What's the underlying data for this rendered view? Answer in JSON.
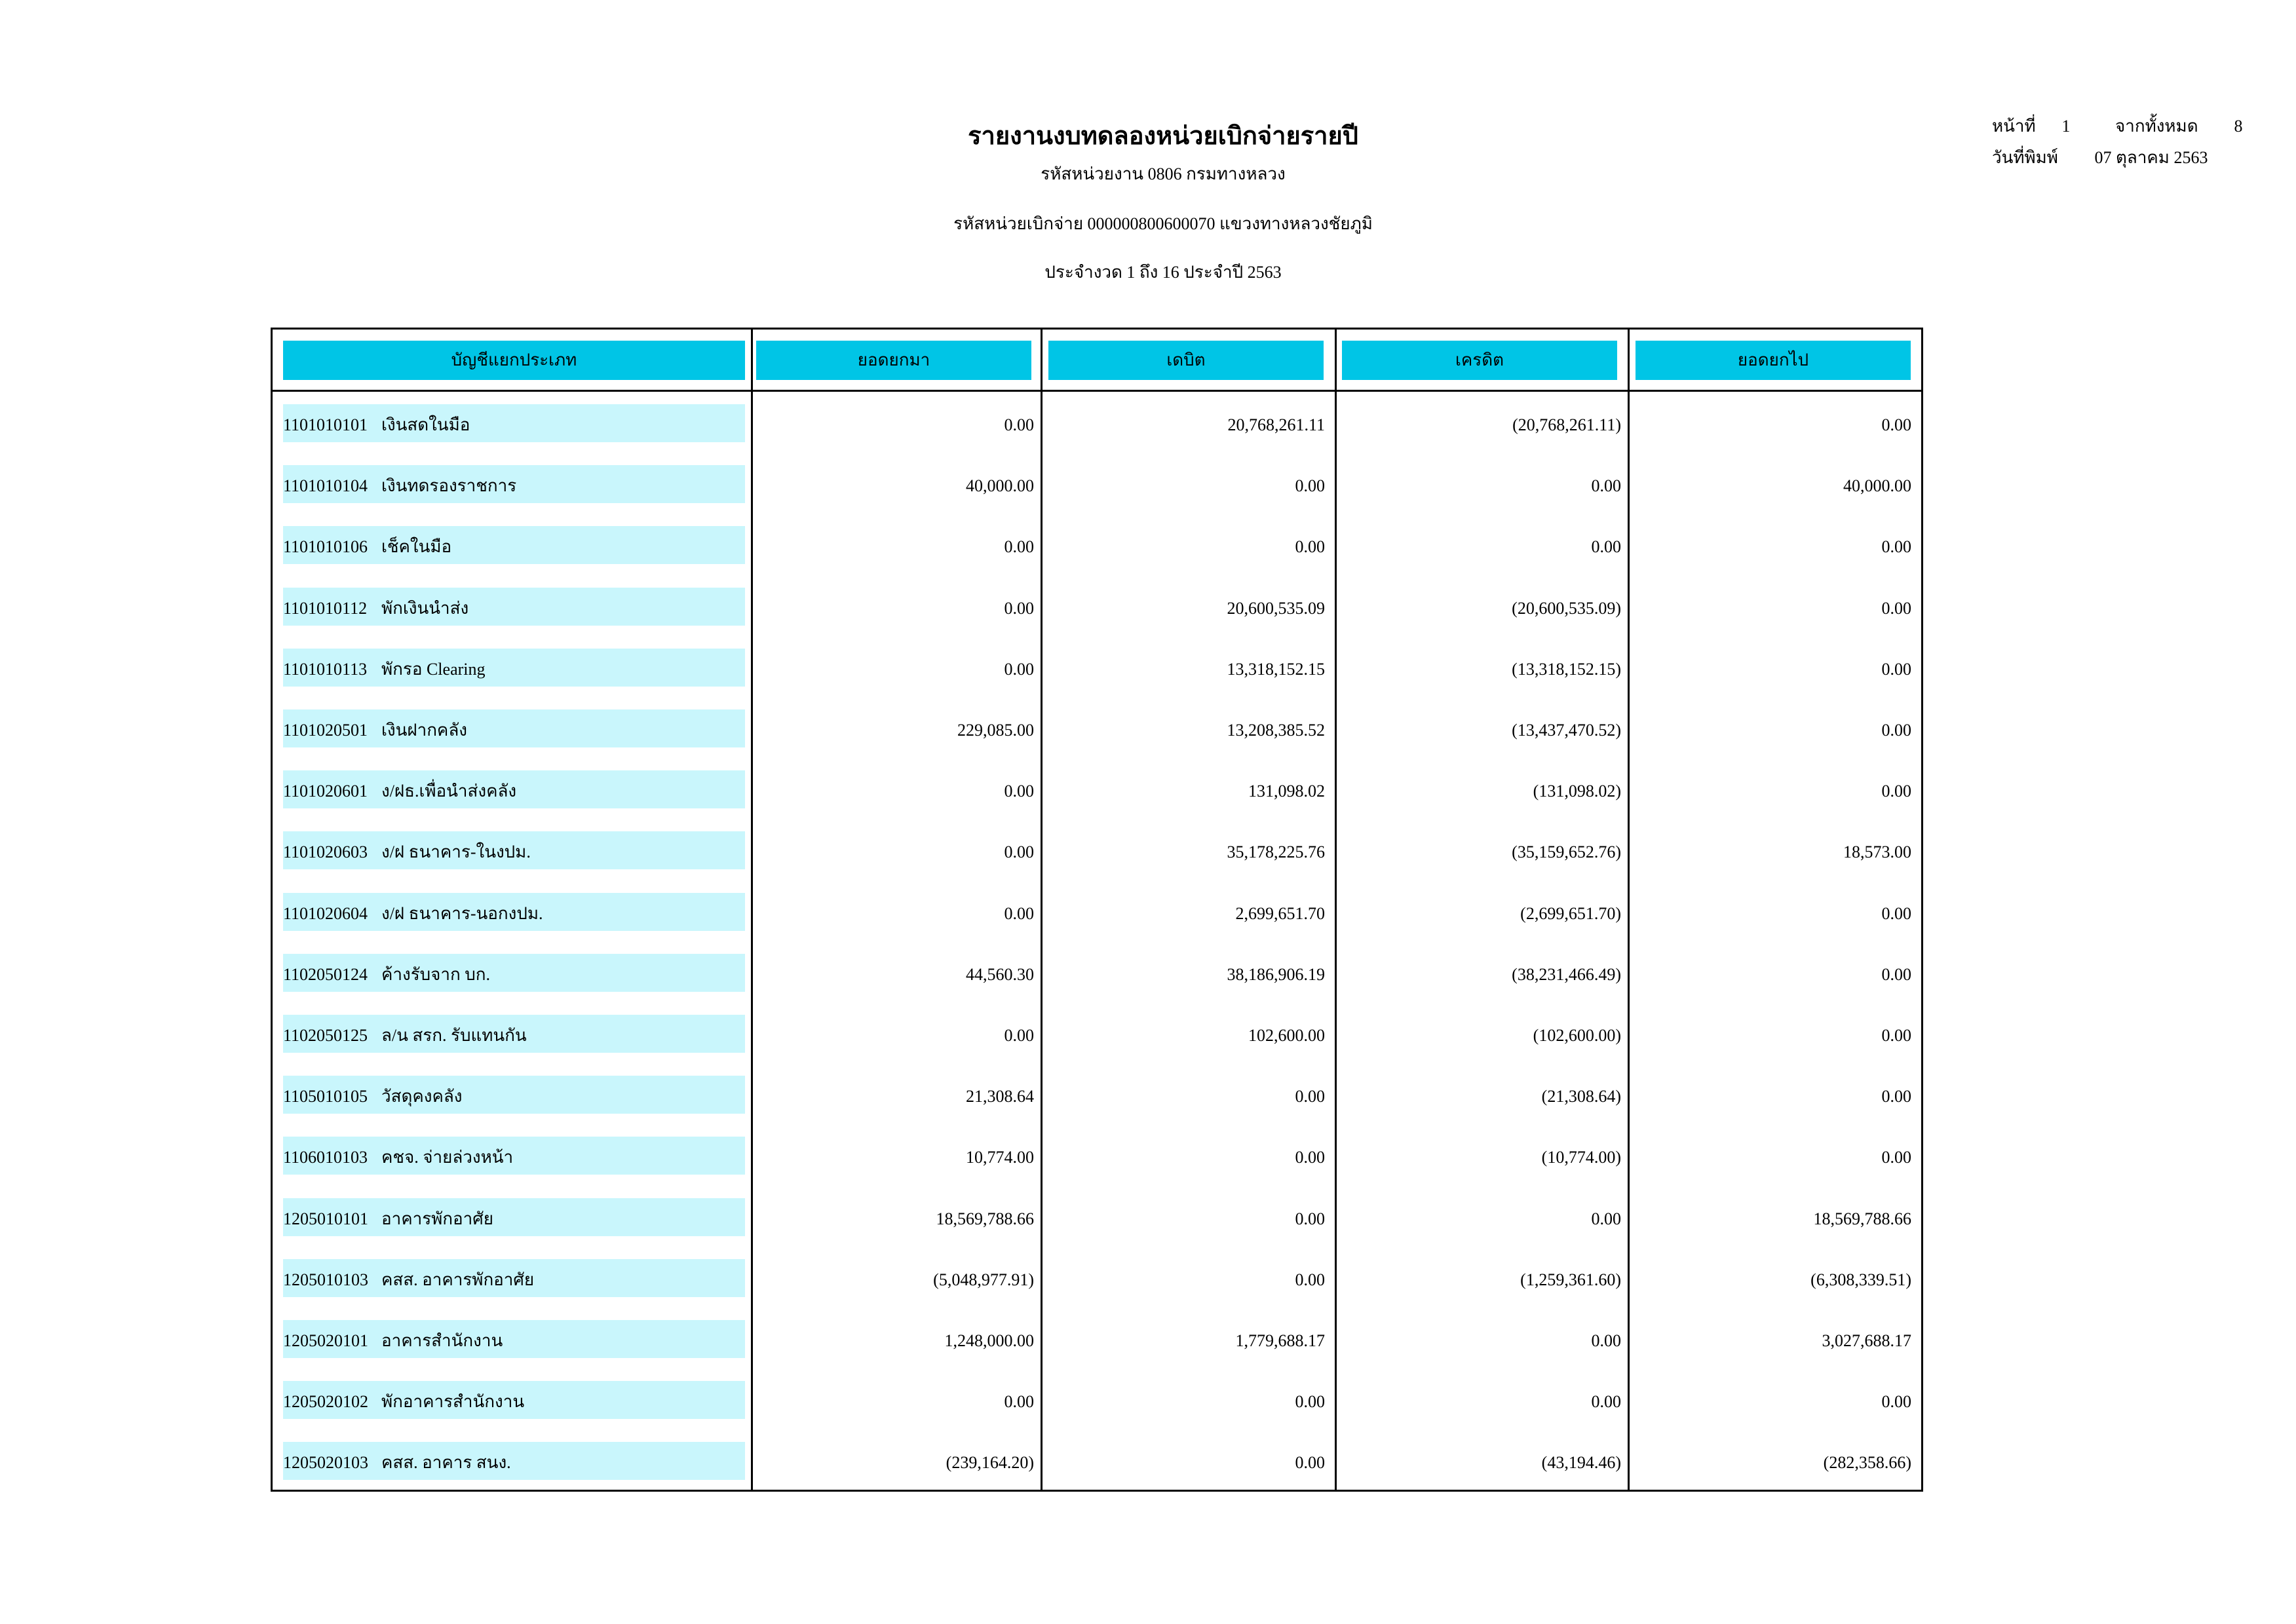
{
  "header": {
    "title": "รายงานงบทดลองหน่วยเบิกจ่ายรายปี",
    "agency": "รหัสหน่วยงาน 0806 กรมทางหลวง",
    "disbursing_unit": "รหัสหน่วยเบิกจ่าย 000000800600070 แขวงทางหลวงชัยภูมิ",
    "period": "ประจำงวด 1 ถึง 16 ประจำปี 2563"
  },
  "page_info": {
    "page_label": "หน้าที่",
    "page": "1",
    "total_label": "จากทั้งหมด",
    "total": "8",
    "print_date_label": "วันที่พิมพ์",
    "print_date": "07 ตุลาคม 2563"
  },
  "colors": {
    "header_bg": "#00c5e6",
    "row_bg": "#c9f6fc"
  },
  "table": {
    "columns": [
      "บัญชีแยกประเภท",
      "ยอดยกมา",
      "เดบิต",
      "เครดิต",
      "ยอดยกไป"
    ],
    "rows": [
      {
        "code": "1101010101",
        "name": "เงินสดในมือ",
        "bf": "0.00",
        "debit": "20,768,261.11",
        "credit": "(20,768,261.11)",
        "cf": "0.00"
      },
      {
        "code": "1101010104",
        "name": "เงินทดรองราชการ",
        "bf": "40,000.00",
        "debit": "0.00",
        "credit": "0.00",
        "cf": "40,000.00"
      },
      {
        "code": "1101010106",
        "name": "เช็คในมือ",
        "bf": "0.00",
        "debit": "0.00",
        "credit": "0.00",
        "cf": "0.00"
      },
      {
        "code": "1101010112",
        "name": "พักเงินนำส่ง",
        "bf": "0.00",
        "debit": "20,600,535.09",
        "credit": "(20,600,535.09)",
        "cf": "0.00"
      },
      {
        "code": "1101010113",
        "name": "พักรอ Clearing",
        "bf": "0.00",
        "debit": "13,318,152.15",
        "credit": "(13,318,152.15)",
        "cf": "0.00"
      },
      {
        "code": "1101020501",
        "name": "เงินฝากคลัง",
        "bf": "229,085.00",
        "debit": "13,208,385.52",
        "credit": "(13,437,470.52)",
        "cf": "0.00"
      },
      {
        "code": "1101020601",
        "name": "ง/ฝธ.เพื่อนำส่งคลัง",
        "bf": "0.00",
        "debit": "131,098.02",
        "credit": "(131,098.02)",
        "cf": "0.00"
      },
      {
        "code": "1101020603",
        "name": "ง/ฝ ธนาคาร-ในงปม.",
        "bf": "0.00",
        "debit": "35,178,225.76",
        "credit": "(35,159,652.76)",
        "cf": "18,573.00"
      },
      {
        "code": "1101020604",
        "name": "ง/ฝ ธนาคาร-นอกงปม.",
        "bf": "0.00",
        "debit": "2,699,651.70",
        "credit": "(2,699,651.70)",
        "cf": "0.00"
      },
      {
        "code": "1102050124",
        "name": "ค้างรับจาก บก.",
        "bf": "44,560.30",
        "debit": "38,186,906.19",
        "credit": "(38,231,466.49)",
        "cf": "0.00"
      },
      {
        "code": "1102050125",
        "name": "ล/น สรก. รับแทนกัน",
        "bf": "0.00",
        "debit": "102,600.00",
        "credit": "(102,600.00)",
        "cf": "0.00"
      },
      {
        "code": "1105010105",
        "name": "วัสดุคงคลัง",
        "bf": "21,308.64",
        "debit": "0.00",
        "credit": "(21,308.64)",
        "cf": "0.00"
      },
      {
        "code": "1106010103",
        "name": "คชจ. จ่ายล่วงหน้า",
        "bf": "10,774.00",
        "debit": "0.00",
        "credit": "(10,774.00)",
        "cf": "0.00"
      },
      {
        "code": "1205010101",
        "name": "อาคารพักอาศัย",
        "bf": "18,569,788.66",
        "debit": "0.00",
        "credit": "0.00",
        "cf": "18,569,788.66"
      },
      {
        "code": "1205010103",
        "name": "คสส. อาคารพักอาศัย",
        "bf": "(5,048,977.91)",
        "debit": "0.00",
        "credit": "(1,259,361.60)",
        "cf": "(6,308,339.51)"
      },
      {
        "code": "1205020101",
        "name": "อาคารสำนักงาน",
        "bf": "1,248,000.00",
        "debit": "1,779,688.17",
        "credit": "0.00",
        "cf": "3,027,688.17"
      },
      {
        "code": "1205020102",
        "name": "พักอาคารสำนักงาน",
        "bf": "0.00",
        "debit": "0.00",
        "credit": "0.00",
        "cf": "0.00"
      },
      {
        "code": "1205020103",
        "name": "คสส. อาคาร สนง.",
        "bf": "(239,164.20)",
        "debit": "0.00",
        "credit": "(43,194.46)",
        "cf": "(282,358.66)"
      }
    ]
  }
}
